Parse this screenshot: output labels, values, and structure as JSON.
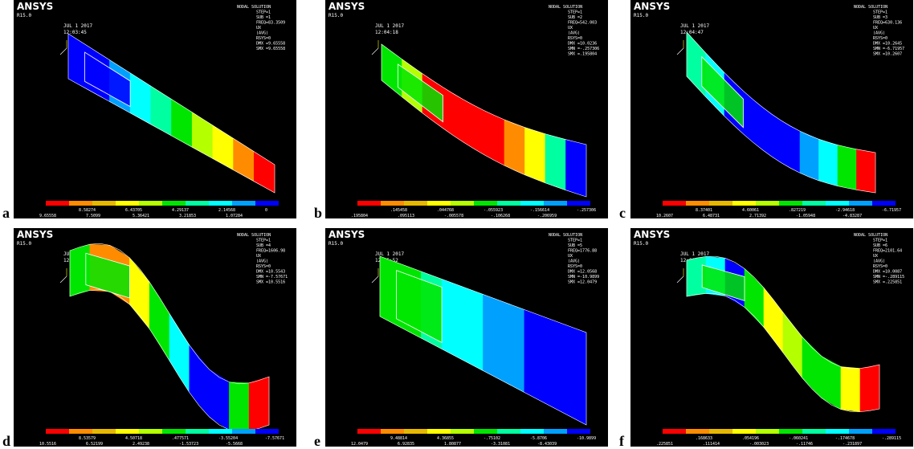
{
  "panels": [
    {
      "label": "a",
      "logo": "ANSYS",
      "release": "R15.0",
      "date": "JUL  1 2017",
      "time": "12:03:45",
      "info": [
        "NODAL SOLUTION",
        "STEP=1",
        "SUB =1",
        "FREQ=83.3509",
        "UX",
        "(AVG)",
        "RSYS=0",
        "DMX =9.65558",
        "SMX =9.65558"
      ],
      "legend": [
        "9.65558",
        "8.58274",
        "7.5099",
        "6.43705",
        "5.36421",
        "4.29137",
        "3.21853",
        "2.14568",
        "1.07284",
        "0"
      ]
    },
    {
      "label": "b",
      "logo": "ANSYS",
      "release": "R15.0",
      "date": "JUL  1 2017",
      "time": "12:04:18",
      "info": [
        "NODAL SOLUTION",
        "STEP=1",
        "SUB =2",
        "FREQ=542.003",
        "UX",
        "(AVG)",
        "RSYS=0",
        "DMX =10.0236",
        "SMN =-.257306",
        "SMX =.195804"
      ],
      "legend": [
        ".195804",
        ".145458",
        ".095113",
        ".044768",
        "-.005578",
        "-.055923",
        "-.106268",
        "-.156614",
        "-.206959",
        "-.257306"
      ]
    },
    {
      "label": "c",
      "logo": "ANSYS",
      "release": "R15.0",
      "date": "JUL  1 2017",
      "time": "12:04:47",
      "info": [
        "NODAL SOLUTION",
        "STEP=1",
        "SUB =3",
        "FREQ=630.136",
        "UX",
        "(AVG)",
        "RSYS=0",
        "DMX =10.2645",
        "SMN =-6.71957",
        "SMX =10.2607"
      ],
      "legend": [
        "10.2607",
        "8.37401",
        "6.48731",
        "4.60061",
        "2.71392",
        ".827219",
        "-1.05948",
        "-2.94618",
        "-4.83287",
        "-6.71957"
      ]
    },
    {
      "label": "d",
      "logo": "ANSYS",
      "release": "R15.0",
      "date": "JUL  1 2017",
      "time": "12:05:18",
      "info": [
        "NODAL SOLUTION",
        "STEP=1",
        "SUB =4",
        "FREQ=1606.98",
        "UX",
        "(AVG)",
        "RSYS=0",
        "DMX =10.5543",
        "SMN =-7.57671",
        "SMX =10.5516"
      ],
      "legend": [
        "10.5516",
        "8.53579",
        "6.52199",
        "4.50718",
        "2.49238",
        ".477571",
        "-1.53723",
        "-3.55204",
        "-5.5668",
        "-7.57671"
      ]
    },
    {
      "label": "e",
      "logo": "ANSYS",
      "release": "R15.0",
      "date": "JUL  1 2017",
      "time": "12:05:52",
      "info": [
        "NODAL SOLUTION",
        "STEP=1",
        "SUB =5",
        "FREQ=1776.88",
        "UX",
        "(AVG)",
        "RSYS=0",
        "DMX =12.0568",
        "SMN =-10.9899",
        "SMX =12.0479"
      ],
      "legend": [
        "12.0479",
        "9.48814",
        "6.92835",
        "4.36855",
        "1.80877",
        "-.75102",
        "-3.31081",
        "-5.8706",
        "-8.43039",
        "-10.9899"
      ]
    },
    {
      "label": "f",
      "logo": "ANSYS",
      "release": "R15.0",
      "date": "JUL  1 2017",
      "time": "12:06:17",
      "info": [
        "NODAL SOLUTION",
        "STEP=1",
        "SUB =6",
        "FREQ=2101.64",
        "UX",
        "(AVG)",
        "RSYS=0",
        "DMX =10.0087",
        "SMN =-.289115",
        "SMX =.225851"
      ],
      "legend": [
        ".225851",
        ".168633",
        ".111414",
        ".054196",
        "-.003023",
        "-.060241",
        "-.11746",
        "-.174678",
        "-.231897",
        "-.289115"
      ]
    }
  ]
}
